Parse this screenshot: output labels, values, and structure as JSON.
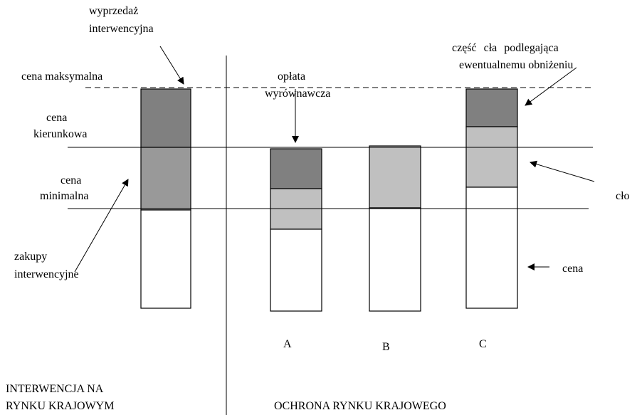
{
  "labels": {
    "intervention_sale": [
      "wyprzedaż",
      "interwencyjna"
    ],
    "max_price": "cena maksymalna",
    "target_price": [
      "cena",
      "kierunkowa"
    ],
    "min_price": [
      "cena",
      "minimalna"
    ],
    "intervention_purchase": [
      "zakupy",
      "interwencyjne"
    ],
    "levy": [
      "opłata",
      "wyrównawcza"
    ],
    "duty_part": [
      "część cła podlegająca",
      "ewentualnemu obniżeniu"
    ],
    "duty": "cło",
    "price": "cena",
    "columns": [
      "A",
      "B",
      "C"
    ],
    "left_section": [
      "INTERWENCJA NA",
      "RYNKU KRAJOWYM"
    ],
    "right_section": "OCHRONA RYNKU KRAJOWEGO"
  }
}
